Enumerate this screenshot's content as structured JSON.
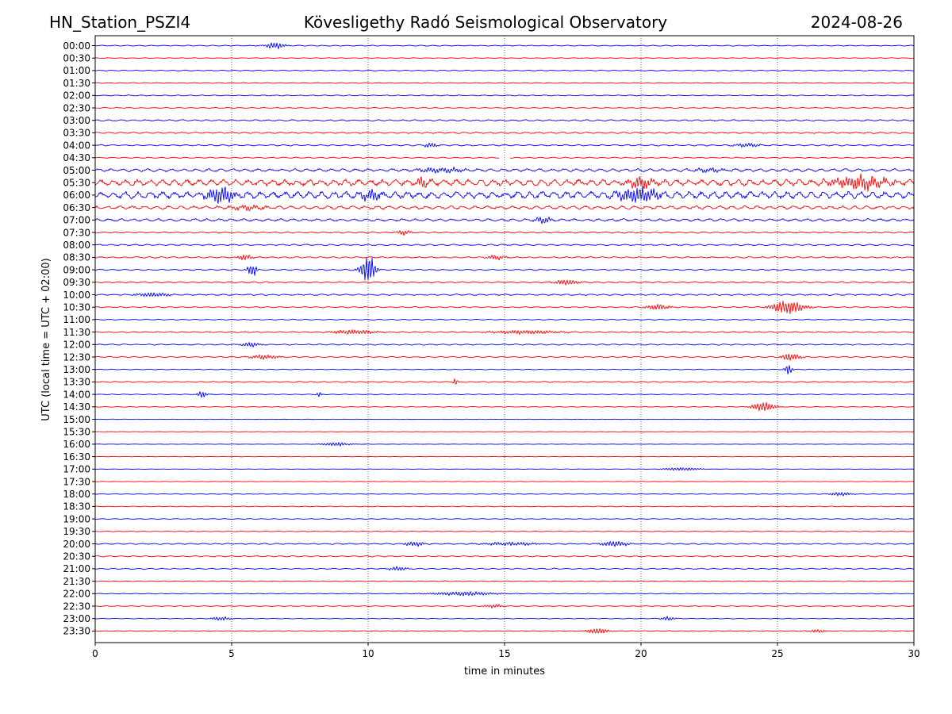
{
  "header": {
    "station": "HN_Station_PSZI4",
    "observatory": "Kövesligethy Radó Seismological Observatory",
    "date": "2024-08-26"
  },
  "chart_data": {
    "type": "line",
    "subtype": "helicorder",
    "title": "Kövesligethy Radó Seismological Observatory",
    "xlabel": "time in minutes",
    "ylabel": "UTC (local time = UTC + 02:00)",
    "xlim": [
      0,
      30
    ],
    "x_ticks": [
      "0",
      "5",
      "10",
      "15",
      "20",
      "25",
      "30"
    ],
    "vertical_gridlines_minutes": [
      5,
      10,
      15,
      20,
      25
    ],
    "trace_colors": [
      "#0000ff",
      "#ff0000"
    ],
    "rows": [
      "00:00",
      "00:30",
      "01:00",
      "01:30",
      "02:00",
      "02:30",
      "03:00",
      "03:30",
      "04:00",
      "04:30",
      "05:00",
      "05:30",
      "06:00",
      "06:30",
      "07:00",
      "07:30",
      "08:00",
      "08:30",
      "09:00",
      "09:30",
      "10:00",
      "10:30",
      "11:00",
      "11:30",
      "12:00",
      "12:30",
      "13:00",
      "13:30",
      "14:00",
      "14:30",
      "15:00",
      "15:30",
      "16:00",
      "16:30",
      "17:00",
      "17:30",
      "18:00",
      "18:30",
      "19:00",
      "19:30",
      "20:00",
      "20:30",
      "21:00",
      "21:30",
      "22:00",
      "22:30",
      "23:00",
      "23:30"
    ],
    "noise_level": [
      0.08,
      0.06,
      0.08,
      0.06,
      0.08,
      0.07,
      0.12,
      0.12,
      0.12,
      0.1,
      0.25,
      0.55,
      0.6,
      0.3,
      0.22,
      0.12,
      0.12,
      0.12,
      0.12,
      0.12,
      0.12,
      0.1,
      0.08,
      0.1,
      0.1,
      0.1,
      0.06,
      0.1,
      0.06,
      0.06,
      0.03,
      0.03,
      0.03,
      0.03,
      0.03,
      0.03,
      0.06,
      0.06,
      0.06,
      0.06,
      0.1,
      0.1,
      0.1,
      0.06,
      0.06,
      0.06,
      0.06,
      0.06
    ],
    "events": [
      {
        "row": 0,
        "minute": 6.6,
        "amplitude": 0.5,
        "duration": 0.4
      },
      {
        "row": 8,
        "minute": 12.3,
        "amplitude": 0.35,
        "duration": 0.3
      },
      {
        "row": 8,
        "minute": 23.9,
        "amplitude": 0.3,
        "duration": 0.5
      },
      {
        "row": 10,
        "minute": 12.8,
        "amplitude": 0.35,
        "duration": 1.0
      },
      {
        "row": 10,
        "minute": 22.5,
        "amplitude": 0.35,
        "duration": 0.6
      },
      {
        "row": 11,
        "minute": 12.0,
        "amplitude": 0.8,
        "duration": 0.3
      },
      {
        "row": 11,
        "minute": 20.0,
        "amplitude": 0.8,
        "duration": 0.6
      },
      {
        "row": 11,
        "minute": 28.0,
        "amplitude": 1.0,
        "duration": 1.2
      },
      {
        "row": 12,
        "minute": 4.6,
        "amplitude": 1.2,
        "duration": 0.6
      },
      {
        "row": 12,
        "minute": 19.9,
        "amplitude": 1.1,
        "duration": 1.0
      },
      {
        "row": 12,
        "minute": 10.1,
        "amplitude": 0.8,
        "duration": 0.4
      },
      {
        "row": 13,
        "minute": 5.6,
        "amplitude": 0.35,
        "duration": 0.8
      },
      {
        "row": 14,
        "minute": 16.4,
        "amplitude": 0.45,
        "duration": 0.4
      },
      {
        "row": 15,
        "minute": 11.3,
        "amplitude": 0.4,
        "duration": 0.3
      },
      {
        "row": 17,
        "minute": 5.5,
        "amplitude": 0.45,
        "duration": 0.3
      },
      {
        "row": 17,
        "minute": 14.7,
        "amplitude": 0.35,
        "duration": 0.4
      },
      {
        "row": 18,
        "minute": 5.75,
        "amplitude": 1.0,
        "duration": 0.2
      },
      {
        "row": 18,
        "minute": 10.0,
        "amplitude": 2.6,
        "duration": 0.3
      },
      {
        "row": 19,
        "minute": 17.3,
        "amplitude": 0.4,
        "duration": 0.6
      },
      {
        "row": 20,
        "minute": 2.1,
        "amplitude": 0.35,
        "duration": 0.7
      },
      {
        "row": 21,
        "minute": 20.6,
        "amplitude": 0.45,
        "duration": 0.5
      },
      {
        "row": 21,
        "minute": 25.4,
        "amplitude": 1.0,
        "duration": 0.7
      },
      {
        "row": 23,
        "minute": 9.5,
        "amplitude": 0.35,
        "duration": 1.0
      },
      {
        "row": 23,
        "minute": 15.8,
        "amplitude": 0.3,
        "duration": 1.5
      },
      {
        "row": 24,
        "minute": 5.7,
        "amplitude": 0.4,
        "duration": 0.4
      },
      {
        "row": 25,
        "minute": 6.2,
        "amplitude": 0.35,
        "duration": 0.6
      },
      {
        "row": 25,
        "minute": 25.5,
        "amplitude": 0.6,
        "duration": 0.4
      },
      {
        "row": 26,
        "minute": 25.4,
        "amplitude": 0.8,
        "duration": 0.15
      },
      {
        "row": 27,
        "minute": 13.2,
        "amplitude": 0.6,
        "duration": 0.1
      },
      {
        "row": 28,
        "minute": 3.9,
        "amplitude": 0.5,
        "duration": 0.2
      },
      {
        "row": 28,
        "minute": 8.2,
        "amplitude": 0.5,
        "duration": 0.1
      },
      {
        "row": 29,
        "minute": 24.5,
        "amplitude": 0.7,
        "duration": 0.5
      },
      {
        "row": 32,
        "minute": 8.8,
        "amplitude": 0.3,
        "duration": 0.6
      },
      {
        "row": 34,
        "minute": 21.5,
        "amplitude": 0.25,
        "duration": 0.8
      },
      {
        "row": 36,
        "minute": 27.3,
        "amplitude": 0.3,
        "duration": 0.5
      },
      {
        "row": 40,
        "minute": 11.7,
        "amplitude": 0.4,
        "duration": 0.4
      },
      {
        "row": 40,
        "minute": 15.2,
        "amplitude": 0.25,
        "duration": 1.2
      },
      {
        "row": 40,
        "minute": 19.0,
        "amplitude": 0.45,
        "duration": 0.6
      },
      {
        "row": 42,
        "minute": 11.1,
        "amplitude": 0.3,
        "duration": 0.4
      },
      {
        "row": 44,
        "minute": 13.5,
        "amplitude": 0.3,
        "duration": 1.5
      },
      {
        "row": 45,
        "minute": 14.6,
        "amplitude": 0.3,
        "duration": 0.4
      },
      {
        "row": 46,
        "minute": 4.6,
        "amplitude": 0.3,
        "duration": 0.4
      },
      {
        "row": 46,
        "minute": 21.0,
        "amplitude": 0.3,
        "duration": 0.3
      },
      {
        "row": 47,
        "minute": 18.4,
        "amplitude": 0.45,
        "duration": 0.5
      },
      {
        "row": 47,
        "minute": 26.5,
        "amplitude": 0.3,
        "duration": 0.3
      }
    ],
    "gaps": [
      {
        "row": 9,
        "from_minute": 14.8,
        "to_minute": 15.2
      }
    ]
  }
}
